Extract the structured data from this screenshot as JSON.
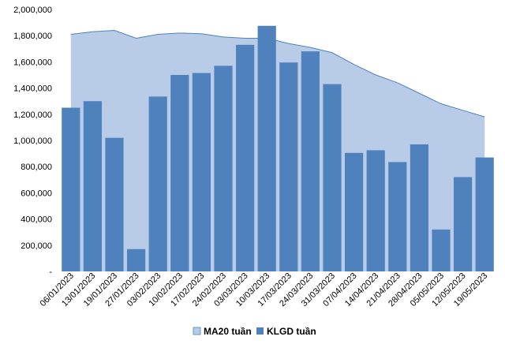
{
  "chart_data": {
    "type": "bar",
    "categories": [
      "06/01/2023",
      "13/01/2023",
      "19/01/2023",
      "27/01/2023",
      "03/02/2023",
      "10/02/2023",
      "17/02/2023",
      "24/02/2023",
      "03/03/2023",
      "10/03/2023",
      "17/03/2023",
      "24/03/2023",
      "31/03/2023",
      "07/04/2023",
      "14/04/2023",
      "21/04/2023",
      "28/04/2023",
      "05/05/2023",
      "12/05/2023",
      "19/05/2023"
    ],
    "y_ticks": [
      "-",
      "200,000",
      "400,000",
      "600,000",
      "800,000",
      "1,000,000",
      "1,200,000",
      "1,400,000",
      "1,600,000",
      "1,800,000",
      "2,000,000"
    ],
    "ylim": [
      0,
      2000000
    ],
    "grid": false,
    "legend_position": "bottom",
    "series": [
      {
        "name": "MA20 tuần",
        "kind": "area",
        "color": "#b8cce8",
        "edge_color": "#4f81bd",
        "values": [
          1810000,
          1830000,
          1840000,
          1780000,
          1810000,
          1820000,
          1815000,
          1790000,
          1780000,
          1780000,
          1740000,
          1710000,
          1670000,
          1580000,
          1500000,
          1440000,
          1360000,
          1280000,
          1230000,
          1180000
        ]
      },
      {
        "name": "KLGD tuần",
        "kind": "bar",
        "color": "#4f81bd",
        "values": [
          1250000,
          1300000,
          1020000,
          170000,
          1335000,
          1500000,
          1515000,
          1570000,
          1730000,
          1875000,
          1595000,
          1680000,
          1430000,
          905000,
          925000,
          835000,
          970000,
          320000,
          720000,
          870000
        ]
      }
    ]
  }
}
